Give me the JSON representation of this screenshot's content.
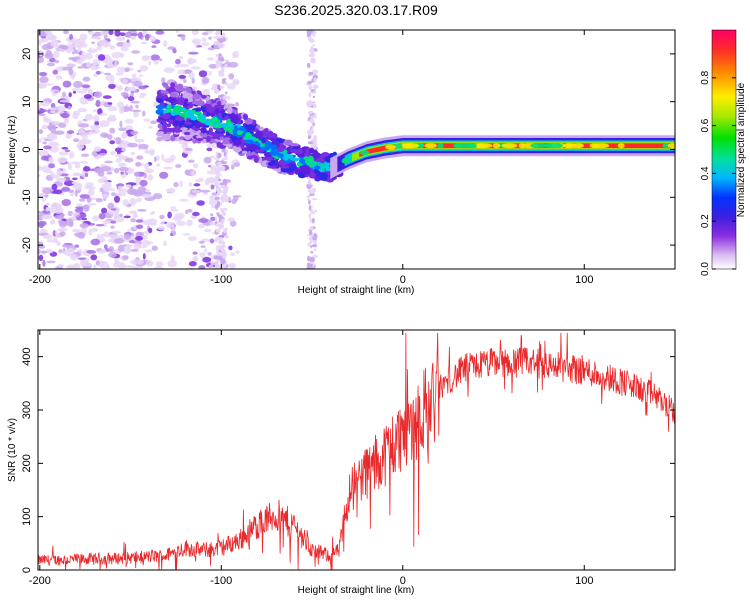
{
  "title": "S236.2025.320.03.17.R09",
  "chart_data": [
    {
      "type": "heatmap",
      "xlabel": "Height of straight line (km)",
      "ylabel": "Frequency (Hz)",
      "xlim": [
        -201,
        150
      ],
      "ylim": [
        -25,
        25
      ],
      "xticks": [
        -200,
        -100,
        0,
        100
      ],
      "yticks": [
        -20,
        -10,
        0,
        10,
        20
      ],
      "trace": [
        [
          -125,
          8
        ],
        [
          -110,
          6.5
        ],
        [
          -95,
          5
        ],
        [
          -85,
          2.5
        ],
        [
          -75,
          0.5
        ],
        [
          -65,
          -1.5
        ],
        [
          -55,
          -2.5
        ],
        [
          -45,
          -3.5
        ],
        [
          -40,
          -4
        ],
        [
          -30,
          -2
        ],
        [
          -20,
          -0.5
        ],
        [
          -10,
          0.3
        ],
        [
          0,
          0.8
        ],
        [
          50,
          0.8
        ],
        [
          150,
          0.8
        ]
      ],
      "colorbar": {
        "label": "Normalized spectral amplitude",
        "range": [
          0,
          1
        ],
        "ticks": [
          0.0,
          0.2,
          0.4,
          0.6,
          0.8
        ]
      }
    },
    {
      "type": "line",
      "xlabel": "Height of straight line (km)",
      "ylabel": "SNR (10 * v/v)",
      "xlim": [
        -201,
        150
      ],
      "ylim": [
        0,
        450
      ],
      "xticks": [
        -200,
        -100,
        0,
        100
      ],
      "yticks": [
        0,
        100,
        200,
        300,
        400
      ],
      "color": "#e8282a",
      "envelope": [
        [
          -201,
          20
        ],
        [
          -150,
          25
        ],
        [
          -130,
          30
        ],
        [
          -120,
          45
        ],
        [
          -110,
          40
        ],
        [
          -100,
          45
        ],
        [
          -90,
          60
        ],
        [
          -80,
          90
        ],
        [
          -70,
          110
        ],
        [
          -60,
          90
        ],
        [
          -50,
          40
        ],
        [
          -40,
          30
        ],
        [
          -35,
          40
        ],
        [
          -30,
          150
        ],
        [
          -25,
          180
        ],
        [
          -15,
          210
        ],
        [
          -5,
          250
        ],
        [
          5,
          290
        ],
        [
          15,
          330
        ],
        [
          25,
          360
        ],
        [
          35,
          385
        ],
        [
          50,
          395
        ],
        [
          70,
          395
        ],
        [
          90,
          385
        ],
        [
          100,
          380
        ],
        [
          120,
          360
        ],
        [
          140,
          330
        ],
        [
          150,
          300
        ]
      ]
    }
  ]
}
